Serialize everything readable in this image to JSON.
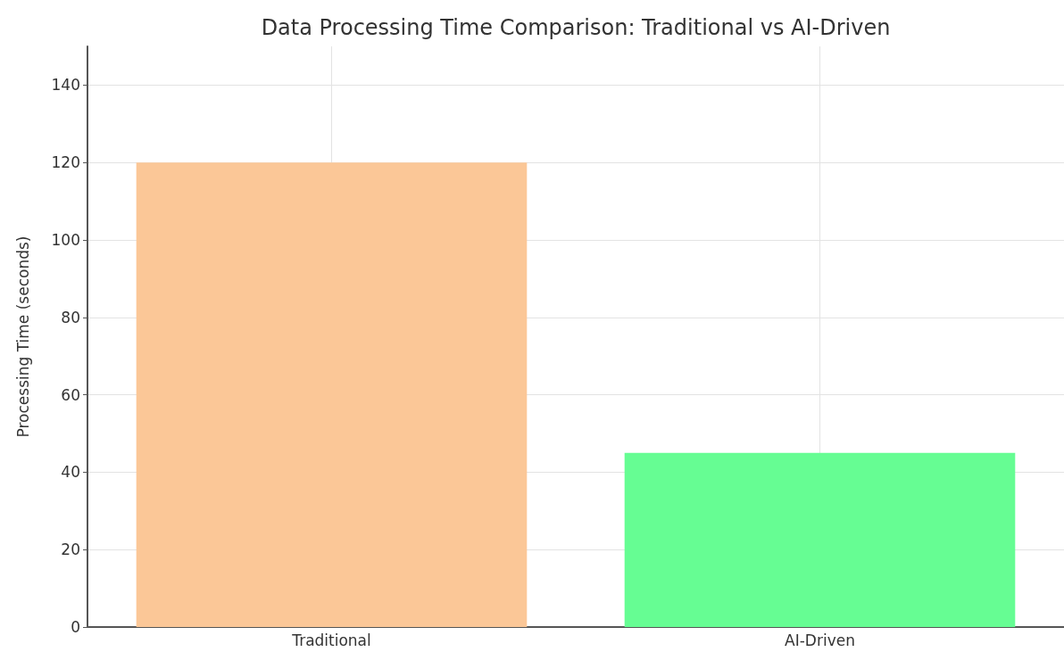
{
  "chart_data": {
    "type": "bar",
    "title": "Data Processing Time Comparison: Traditional vs AI-Driven",
    "ylabel": "Processing Time (seconds)",
    "categories": [
      "Traditional",
      "AI-Driven"
    ],
    "values": [
      120,
      45
    ],
    "colors": [
      "#fbc797",
      "#66fd93"
    ],
    "ylim": [
      0,
      150
    ],
    "yticks": [
      0,
      20,
      40,
      60,
      80,
      100,
      120,
      140
    ],
    "grid": true
  }
}
